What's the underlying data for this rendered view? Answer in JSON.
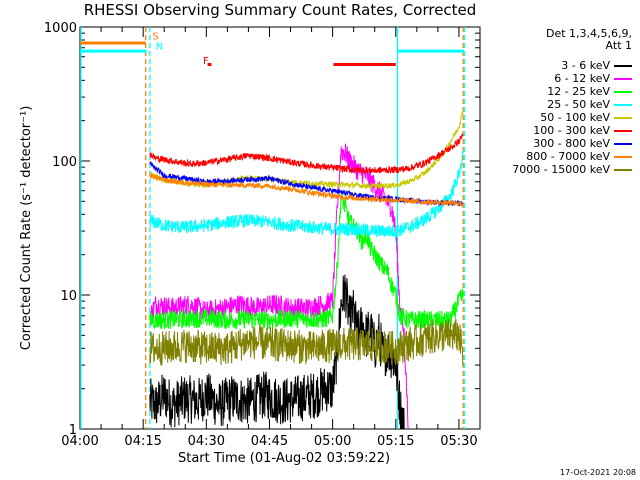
{
  "title": "RHESSI Observing Summary Count Rates, Corrected",
  "legend_header": [
    "Det 1,3,4,5,6,9,",
    "Att 1"
  ],
  "timestamp": "17-Oct-2021 20:08",
  "colors": {
    "3-6": "#000000",
    "6-12": "#ff00ff",
    "12-25": "#00ff00",
    "25-50": "#00ffff",
    "50-100": "#c8c800",
    "100-300": "#ff0000",
    "300-800": "#0000ff",
    "800-7000": "#ff8000",
    "7000-15000": "#808000",
    "saa": "#00ffff",
    "night": "#ff8000",
    "flare": "#ff0000"
  },
  "chart_data": {
    "type": "line",
    "title": "RHESSI Observing Summary Count Rates, Corrected",
    "xlabel": "Start Time (01-Aug-02 03:59:22)",
    "ylabel": "Corrected Count Rate (s⁻¹ detector⁻¹)",
    "yscale": "log",
    "ylim": [
      1,
      1000
    ],
    "xlim_minutes": [
      0,
      95
    ],
    "x_ticks": [
      {
        "m": 0,
        "label": "04:00"
      },
      {
        "m": 15,
        "label": "04:15"
      },
      {
        "m": 30,
        "label": "04:30"
      },
      {
        "m": 45,
        "label": "04:45"
      },
      {
        "m": 60,
        "label": "05:00"
      },
      {
        "m": 75,
        "label": "05:15"
      },
      {
        "m": 90,
        "label": "05:30"
      }
    ],
    "y_ticks": [
      {
        "v": 1,
        "label": "1"
      },
      {
        "v": 10,
        "label": "10"
      },
      {
        "v": 100,
        "label": "100"
      },
      {
        "v": 1000,
        "label": "1000"
      }
    ],
    "flag_labels": [
      {
        "text": "S",
        "m": 17.2,
        "v": 810,
        "color": "#ff8000"
      },
      {
        "text": "N",
        "m": 18.0,
        "v": 680,
        "color": "#00ffff"
      },
      {
        "text": "F",
        "m": 29.2,
        "v": 530,
        "color": "#ff0000"
      }
    ],
    "flag_bars": [
      {
        "name": "night",
        "color": "#ff8000",
        "v": 760,
        "ranges": [
          [
            0,
            15.6
          ]
        ]
      },
      {
        "name": "saa",
        "color": "#00ffff",
        "v": 660,
        "ranges": [
          [
            0,
            15.8
          ],
          [
            75.4,
            91.2
          ]
        ]
      },
      {
        "name": "flare",
        "color": "#ff0000",
        "v": 525,
        "ranges": [
          [
            30.3,
            31.2
          ],
          [
            60.2,
            75.0
          ]
        ]
      }
    ],
    "vlines": [
      {
        "m": 0.2,
        "color": "#00ffff",
        "style": "solid"
      },
      {
        "m": 15.6,
        "color": "#ff8000",
        "style": "dash"
      },
      {
        "m": 16.6,
        "color": "#00ffff",
        "style": "dash"
      },
      {
        "m": 75.4,
        "color": "#00ffff",
        "style": "solid"
      },
      {
        "m": 91.0,
        "color": "#ff8000",
        "style": "dash"
      },
      {
        "m": 91.3,
        "color": "#00ffff",
        "style": "dash"
      }
    ],
    "series": [
      {
        "name": "3 - 6 keV",
        "key": "3-6",
        "x": [
          16.6,
          18,
          20,
          22,
          25,
          28,
          30,
          33,
          36,
          40,
          44,
          48,
          52,
          56,
          58,
          60,
          61,
          62,
          63,
          64,
          65,
          66,
          67,
          68,
          69,
          70,
          71,
          72,
          73,
          74,
          75,
          76,
          77
        ],
        "y": [
          1.6,
          1.5,
          1.8,
          1.5,
          1.7,
          1.6,
          1.8,
          1.5,
          1.7,
          1.6,
          1.8,
          1.6,
          1.7,
          1.8,
          2.0,
          2.0,
          3.5,
          8.5,
          11,
          6.5,
          7.5,
          5.0,
          6.0,
          5.0,
          5.5,
          4.0,
          5.0,
          3.5,
          4.0,
          3.5,
          3.0,
          1.5,
          1.0
        ],
        "noise": 0.18
      },
      {
        "name": "6 - 12 keV",
        "key": "6-12",
        "x": [
          16.6,
          18,
          22,
          26,
          30,
          34,
          38,
          42,
          46,
          50,
          54,
          58,
          60,
          61,
          62,
          63,
          64,
          66,
          68,
          70,
          72,
          74,
          75,
          76,
          77,
          78
        ],
        "y": [
          7.0,
          8.5,
          8.0,
          8.5,
          7.5,
          8.0,
          8.5,
          8.0,
          8.5,
          8.0,
          8.0,
          8.5,
          9.0,
          40,
          120,
          115,
          100,
          85,
          78,
          65,
          55,
          45,
          30,
          8.0,
          5.0,
          1.0
        ],
        "noise": 0.08
      },
      {
        "name": "12 - 25 keV",
        "key": "12-25",
        "x": [
          16.6,
          20,
          25,
          30,
          35,
          40,
          45,
          50,
          55,
          58,
          60,
          61,
          62,
          63,
          64,
          65,
          66,
          67,
          68,
          69,
          70,
          71,
          72,
          73,
          74,
          75,
          76,
          78,
          80,
          84,
          88,
          90,
          91
        ],
        "y": [
          6.5,
          6.5,
          6.6,
          6.7,
          6.5,
          6.6,
          6.5,
          6.7,
          6.6,
          6.6,
          7.0,
          15,
          55,
          45,
          35,
          32,
          30,
          25,
          28,
          22,
          20,
          18,
          16,
          15,
          12,
          10,
          7.0,
          6.5,
          6.5,
          6.5,
          6.5,
          9.0,
          10
        ],
        "noise": 0.07
      },
      {
        "name": "25 - 50 keV",
        "key": "25-50",
        "x": [
          16.6,
          20,
          25,
          30,
          35,
          40,
          45,
          50,
          55,
          60,
          65,
          70,
          75,
          78,
          80,
          82,
          84,
          86,
          88,
          90,
          91
        ],
        "y": [
          36,
          33,
          32,
          33,
          35,
          36,
          35,
          33,
          32,
          31,
          31,
          30,
          30,
          32,
          34,
          37,
          41,
          47,
          55,
          80,
          110
        ],
        "noise": 0.05
      },
      {
        "name": "50 - 100 keV",
        "key": "50-100",
        "x": [
          16.6,
          20,
          25,
          30,
          35,
          40,
          45,
          50,
          55,
          60,
          65,
          70,
          75,
          78,
          80,
          82,
          84,
          86,
          88,
          90,
          91
        ],
        "y": [
          80,
          72,
          68,
          66,
          70,
          75,
          73,
          70,
          68,
          67,
          66,
          65,
          66,
          70,
          75,
          82,
          95,
          110,
          140,
          180,
          240
        ],
        "noise": 0.02
      },
      {
        "name": "100 - 300 keV",
        "key": "100-300",
        "x": [
          16.6,
          18,
          22,
          26,
          30,
          35,
          40,
          45,
          50,
          55,
          60,
          65,
          70,
          75,
          78,
          80,
          82,
          84,
          86,
          88,
          90,
          91
        ],
        "y": [
          113,
          105,
          100,
          95,
          97,
          103,
          110,
          105,
          98,
          93,
          89,
          86,
          85,
          86,
          88,
          92,
          97,
          105,
          115,
          125,
          140,
          160
        ],
        "noise": 0.025
      },
      {
        "name": "300 - 800 keV",
        "key": "300-800",
        "x": [
          16.6,
          20,
          25,
          30,
          35,
          40,
          45,
          50,
          55,
          60,
          65,
          70,
          75,
          80,
          85,
          91
        ],
        "y": [
          95,
          78,
          74,
          70,
          71,
          73,
          74,
          68,
          63,
          60,
          56,
          53,
          52,
          50,
          49,
          48
        ],
        "noise": 0.02
      },
      {
        "name": "800 - 7000 keV",
        "key": "800-7000",
        "x": [
          16.6,
          20,
          25,
          30,
          35,
          40,
          45,
          50,
          55,
          60,
          65,
          70,
          75,
          80,
          85,
          91
        ],
        "y": [
          78,
          72,
          69,
          67,
          66,
          66,
          65,
          62,
          58,
          55,
          53,
          52,
          51,
          50,
          49,
          48
        ],
        "noise": 0.02
      },
      {
        "name": "7000 - 15000 keV",
        "key": "7000-15000",
        "x": [
          16.6,
          20,
          25,
          30,
          35,
          40,
          45,
          50,
          55,
          60,
          65,
          70,
          75,
          80,
          85,
          90,
          91
        ],
        "y": [
          4.0,
          4.0,
          4.2,
          4.0,
          4.0,
          4.5,
          4.3,
          4.2,
          4.0,
          4.2,
          4.3,
          4.2,
          4.0,
          4.5,
          5.0,
          5.0,
          3.5
        ],
        "noise": 0.13
      }
    ]
  }
}
